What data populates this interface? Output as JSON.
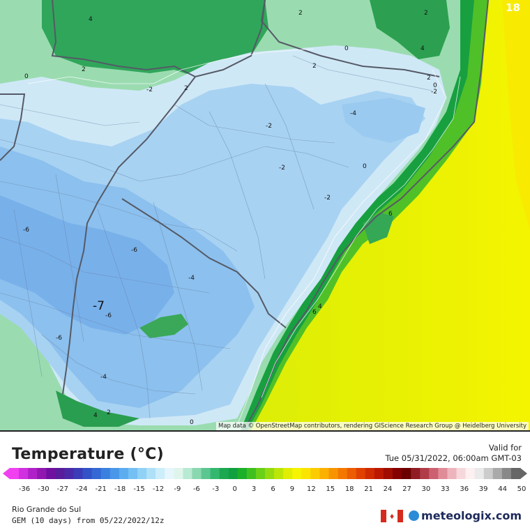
{
  "map": {
    "corner_number": "18",
    "attribution": "Map data © OpenStreetMap contributors, rendering GIScience Research Group @ Heidelberg University",
    "big_label": "-7",
    "contour_labels": [
      "4",
      "2",
      "2",
      "0",
      "4",
      "2",
      "2",
      "0",
      "-2",
      "2",
      "0",
      "2",
      "-2",
      "-4",
      "-2",
      "-2",
      "0",
      "-2",
      "-6",
      "-6",
      "-4",
      "-6",
      "-6",
      "6",
      "6",
      "4",
      "-4",
      "4",
      "2",
      "0"
    ]
  },
  "legend": {
    "title": "Temperature (°C)",
    "valid_label": "Valid for",
    "valid_time": "Tue 05/31/2022, 06:00am GMT-03",
    "ticks": [
      "-36",
      "-30",
      "-27",
      "-24",
      "-21",
      "-18",
      "-15",
      "-12",
      "-9",
      "-6",
      "-3",
      "0",
      "3",
      "6",
      "9",
      "12",
      "15",
      "18",
      "21",
      "24",
      "27",
      "30",
      "33",
      "36",
      "39",
      "44",
      "50"
    ],
    "colors": [
      "#f040f0",
      "#d030e0",
      "#b020c8",
      "#9018b0",
      "#7010a0",
      "#581c9c",
      "#4a2aa8",
      "#3c3cb8",
      "#3452c8",
      "#3468d4",
      "#3a80e0",
      "#4a96e8",
      "#5cacf0",
      "#74c0f4",
      "#90d2f6",
      "#aee0f8",
      "#cceefa",
      "#e6f6fc",
      "#dff5ec",
      "#b8ead2",
      "#8ad8b0",
      "#5cc690",
      "#34b870",
      "#1ca850",
      "#10a040",
      "#1cb028",
      "#40c020",
      "#6ad018",
      "#94dc10",
      "#bce608",
      "#e0ee04",
      "#f6f400",
      "#fae400",
      "#fccc00",
      "#fcb000",
      "#f89400",
      "#f47800",
      "#ec5c00",
      "#e04000",
      "#d02a00",
      "#bc1800",
      "#a00c00",
      "#840000",
      "#6c0000",
      "#901c24",
      "#b03c48",
      "#cc6070",
      "#e08c98",
      "#eeb4bc",
      "#f6d8dc",
      "#fcf0f0",
      "#eaeaea",
      "#cccccc",
      "#aaaaaa",
      "#888888",
      "#666666"
    ],
    "region": "Rio Grande do Sul",
    "model": "GEM (10 days) from 05/22/2022/12z",
    "brand": "meteologix.com"
  }
}
